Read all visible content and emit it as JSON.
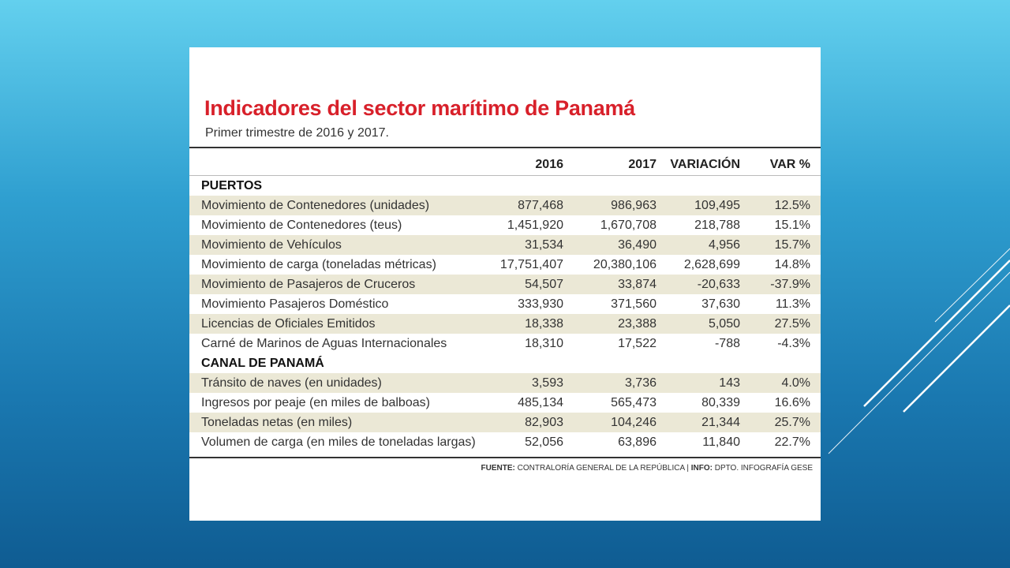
{
  "title": "Indicadores del sector marítimo de Panamá",
  "subtitle": "Primer trimestre de 2016 y 2017.",
  "columns": {
    "c2016": "2016",
    "c2017": "2017",
    "variacion": "VARIACIÓN",
    "varpct": "VAR %"
  },
  "colors": {
    "title": "#d8202a",
    "shade": "#ebe8d6"
  },
  "rows": [
    {
      "type": "section",
      "label": "PUERTOS"
    },
    {
      "type": "data",
      "label": "Movimiento de Contenedores (unidades)",
      "v2016": "877,468",
      "v2017": "986,963",
      "var": "109,495",
      "pct": "12.5%",
      "shade": true
    },
    {
      "type": "data",
      "label": "Movimiento de Contenedores (teus)",
      "v2016": "1,451,920",
      "v2017": "1,670,708",
      "var": "218,788",
      "pct": "15.1%",
      "shade": false
    },
    {
      "type": "data",
      "label": "Movimiento de Vehículos",
      "v2016": "31,534",
      "v2017": "36,490",
      "var": "4,956",
      "pct": "15.7%",
      "shade": true
    },
    {
      "type": "data",
      "label": "Movimiento de carga (toneladas métricas)",
      "v2016": "17,751,407",
      "v2017": "20,380,106",
      "var": "2,628,699",
      "pct": "14.8%",
      "shade": false
    },
    {
      "type": "data",
      "label": "Movimiento de Pasajeros de Cruceros",
      "v2016": "54,507",
      "v2017": "33,874",
      "var": "-20,633",
      "pct": "-37.9%",
      "shade": true
    },
    {
      "type": "data",
      "label": "Movimiento Pasajeros Doméstico",
      "v2016": "333,930",
      "v2017": "371,560",
      "var": "37,630",
      "pct": "11.3%",
      "shade": false
    },
    {
      "type": "data",
      "label": "Licencias de Oficiales Emitidos",
      "v2016": "18,338",
      "v2017": "23,388",
      "var": "5,050",
      "pct": "27.5%",
      "shade": true
    },
    {
      "type": "data",
      "label": "Carné de Marinos de Aguas Internacionales",
      "v2016": "18,310",
      "v2017": "17,522",
      "var": "-788",
      "pct": "-4.3%",
      "shade": false
    },
    {
      "type": "section",
      "label": "CANAL DE PANAMÁ"
    },
    {
      "type": "data",
      "label": "Tránsito de naves (en unidades)",
      "v2016": "3,593",
      "v2017": "3,736",
      "var": "143",
      "pct": "4.0%",
      "shade": true
    },
    {
      "type": "data",
      "label": "Ingresos por peaje (en miles de balboas)",
      "v2016": "485,134",
      "v2017": "565,473",
      "var": "80,339",
      "pct": "16.6%",
      "shade": false
    },
    {
      "type": "data",
      "label": "Toneladas netas (en miles)",
      "v2016": "82,903",
      "v2017": "104,246",
      "var": "21,344",
      "pct": "25.7%",
      "shade": true
    },
    {
      "type": "data",
      "label": "Volumen de carga (en miles de toneladas largas)",
      "v2016": "52,056",
      "v2017": "63,896",
      "var": "11,840",
      "pct": "22.7%",
      "shade": false
    }
  ],
  "source": {
    "fuente_label": "FUENTE:",
    "fuente_text": " CONTRALORÍA GENERAL DE LA REPÚBLICA | ",
    "info_label": "INFO:",
    "info_text": " DPTO. INFOGRAFÍA GESE"
  }
}
